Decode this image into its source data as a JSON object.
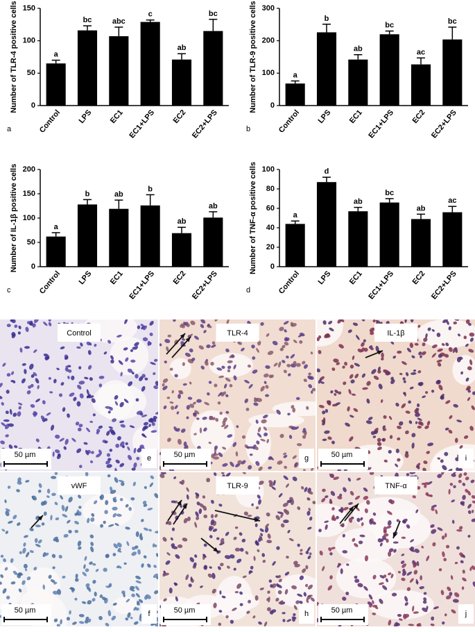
{
  "chart_data": [
    {
      "type": "bar",
      "panel": "a",
      "ylabel": "Number of TLR-4 positive cells",
      "categories": [
        "Control",
        "LPS",
        "EC1",
        "EC1+LPS",
        "EC2",
        "EC2+LPS"
      ],
      "values": [
        65,
        116,
        107,
        129,
        71,
        115
      ],
      "errors": [
        5,
        7,
        14,
        3,
        9,
        18
      ],
      "annotations": [
        "a",
        "bc",
        "abc",
        "c",
        "ab",
        "bc"
      ],
      "color": "#000000",
      "ylim": [
        0,
        150
      ],
      "yticks": [
        0,
        50,
        100,
        150
      ]
    },
    {
      "type": "bar",
      "panel": "b",
      "ylabel": "Number of TLR-9 positive cells",
      "categories": [
        "Control",
        "LPS",
        "EC1",
        "EC1+LPS",
        "EC2",
        "EC2+LPS"
      ],
      "values": [
        68,
        226,
        142,
        220,
        127,
        204
      ],
      "errors": [
        8,
        25,
        15,
        10,
        20,
        38
      ],
      "annotations": [
        "a",
        "b",
        "ab",
        "bc",
        "ac",
        "bc"
      ],
      "color": "#000000",
      "ylim": [
        0,
        300
      ],
      "yticks": [
        0,
        100,
        200,
        300
      ]
    },
    {
      "type": "bar",
      "panel": "c",
      "ylabel": "Number of IL-1β positive cells",
      "categories": [
        "Control",
        "LPS",
        "EC1",
        "EC1+LPS",
        "EC2",
        "EC2+LPS"
      ],
      "values": [
        62,
        128,
        119,
        126,
        69,
        101
      ],
      "errors": [
        8,
        10,
        18,
        22,
        12,
        12
      ],
      "annotations": [
        "a",
        "b",
        "ab",
        "b",
        "ab",
        "ab"
      ],
      "color": "#000000",
      "ylim": [
        0,
        200
      ],
      "yticks": [
        0,
        50,
        100,
        150,
        200
      ]
    },
    {
      "type": "bar",
      "panel": "d",
      "ylabel": "Number of TNF-α positive cells",
      "categories": [
        "Control",
        "LPS",
        "EC1",
        "EC1+LPS",
        "EC2",
        "EC2+LPS"
      ],
      "values": [
        44,
        87,
        57,
        66,
        49,
        56
      ],
      "errors": [
        3,
        5,
        4,
        4,
        5,
        6
      ],
      "annotations": [
        "a",
        "d",
        "ab",
        "bc",
        "ab",
        "ac"
      ],
      "color": "#000000",
      "ylim": [
        0,
        100
      ],
      "yticks": [
        0,
        20,
        40,
        60,
        80,
        100
      ]
    }
  ],
  "micrographs": [
    {
      "label": "Control",
      "panel": "e",
      "scale": "50 µm"
    },
    {
      "label": "TLR-4",
      "panel": "g",
      "scale": "50 µm"
    },
    {
      "label": "IL-1β",
      "panel": "i",
      "scale": "50 µm"
    },
    {
      "label": "vWF",
      "panel": "f",
      "scale": "50 µm"
    },
    {
      "label": "TLR-9",
      "panel": "h",
      "scale": "50 µm"
    },
    {
      "label": "TNF-α",
      "panel": "j",
      "scale": "50 µm"
    }
  ]
}
